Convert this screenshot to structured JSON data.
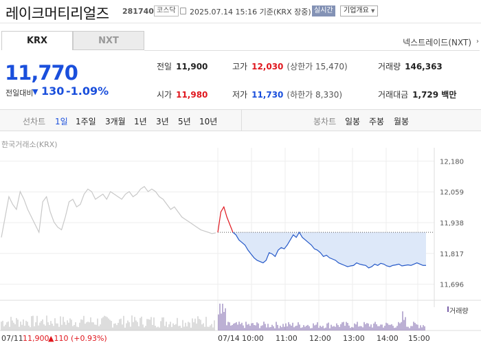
{
  "header": {
    "stock_name": "레이크머티리얼즈",
    "stock_code": "281740",
    "market": "코스닥",
    "datetime": "2025.07.14 15:16 기준(KRX 장중)",
    "realtime_label": "실시간",
    "overview_label": "기업개요"
  },
  "tabs": {
    "krx": "KRX",
    "nxt": "NXT",
    "nextrade": "넥스트레이드(NXT)"
  },
  "price": {
    "current": "11,770",
    "compare_label": "전일대비",
    "change": "130",
    "change_pct": "-1.09%"
  },
  "stats": {
    "prev_close_label": "전일",
    "prev_close": "11,900",
    "high_label": "고가",
    "high": "12,030",
    "upper_limit": "(상한가 15,470)",
    "volume_label": "거래량",
    "volume": "146,363",
    "open_label": "시가",
    "open": "11,980",
    "low_label": "저가",
    "low": "11,730",
    "lower_limit": "(하한가 8,330)",
    "amount_label": "거래대금",
    "amount": "1,729 백만"
  },
  "toolbar": {
    "line_label": "선차트",
    "line_items": [
      "1일",
      "1주일",
      "3개월",
      "1년",
      "3년",
      "5년",
      "10년"
    ],
    "candle_label": "봉차트",
    "candle_items": [
      "일봉",
      "주봉",
      "월봉"
    ]
  },
  "chart_title": "한국거래소(KRX)",
  "volume_label": "거래량",
  "prev_day_info": {
    "date": "07/11",
    "close": "11,900",
    "change": "▲110 (+0.93%)"
  },
  "colors": {
    "up": "#e0161d",
    "down": "#1a4fdc",
    "area": "#dde8f9",
    "prev": "#c8c8c8"
  },
  "chart_data": {
    "type": "line",
    "y_ticks": [
      "12,180",
      "12,059",
      "11,938",
      "11,817",
      "11,696"
    ],
    "ylim": [
      11660,
      12200
    ],
    "x_ticks": [
      "07/14",
      "10:00",
      "11:00",
      "12:00",
      "13:00",
      "14:00",
      "15:00"
    ],
    "reference_price": 11900,
    "series": [
      {
        "values": [
          11880,
          11960,
          12040,
          12010,
          11990,
          12060,
          12030,
          11990,
          11960,
          11930,
          11900,
          12020,
          12040,
          11980,
          11940,
          11920,
          11910,
          11960,
          12020,
          12030,
          12000,
          12010,
          12050,
          12070,
          12060,
          12030,
          12040,
          12050,
          12030,
          12060,
          12050,
          12040,
          12030,
          12050,
          12060,
          12040,
          12050,
          12070,
          12080,
          12060,
          12070,
          12060,
          12040,
          12030,
          12010,
          11990,
          12000,
          11980,
          11960,
          11950,
          11940,
          11930,
          11920,
          11910,
          11905,
          11900,
          11895,
          11898
        ]
      },
      {
        "values": [
          11900,
          11980,
          12000,
          11960,
          11930,
          11900,
          11890,
          11870,
          11860,
          11850,
          11830,
          11815,
          11800,
          11790,
          11785,
          11780,
          11790,
          11820,
          11815,
          11805,
          11830,
          11840,
          11835,
          11850,
          11870,
          11890,
          11880,
          11900,
          11880,
          11870,
          11860,
          11850,
          11835,
          11830,
          11820,
          11805,
          11810,
          11800,
          11795,
          11790,
          11780,
          11775,
          11770,
          11765,
          11768,
          11770,
          11780,
          11775,
          11772,
          11770,
          11760,
          11765,
          11775,
          11770,
          11778,
          11775,
          11768,
          11765,
          11770,
          11772,
          11775,
          11768,
          11770,
          11772,
          11770,
          11775,
          11780,
          11775,
          11770,
          11770
        ]
      }
    ]
  }
}
